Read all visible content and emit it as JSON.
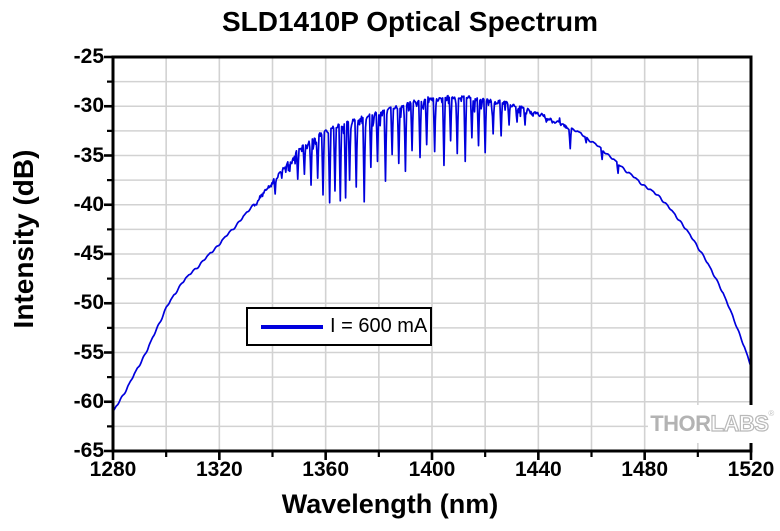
{
  "title": "SLD1410P Optical Spectrum",
  "legend": {
    "label": "I = 600 mA"
  },
  "watermark": {
    "thor": "THOR",
    "labs": "LABS",
    "registered": "®"
  },
  "colors": {
    "curve": "#0000dd",
    "grid": "#d2d2d2",
    "axis": "#000000",
    "background": "#ffffff",
    "watermark_gray": "#b3b3b3"
  },
  "chart_data": {
    "type": "line",
    "title": "SLD1410P Optical Spectrum",
    "xlabel": "Wavelength (nm)",
    "ylabel": "Intensity (dB)",
    "xlim": [
      1280,
      1520
    ],
    "ylim": [
      -65,
      -25
    ],
    "x_major_ticks": [
      1280,
      1320,
      1360,
      1400,
      1440,
      1480,
      1520
    ],
    "x_minor_ticks": [
      1300,
      1340,
      1380,
      1420,
      1460,
      1500
    ],
    "y_major_ticks": [
      -25,
      -30,
      -35,
      -40,
      -45,
      -50,
      -55,
      -60,
      -65
    ],
    "y_minor_ticks": [
      -27.5,
      -32.5,
      -37.5,
      -42.5,
      -47.5,
      -52.5,
      -57.5,
      -62.5
    ],
    "grid": true,
    "grid_spacing": {
      "x_nm": 20,
      "y_db": 2.5
    },
    "legend_position": "center-left",
    "series": [
      {
        "name": "I = 600 mA",
        "color": "#0000dd",
        "peak_wavelength_nm": 1405,
        "peak_intensity_db": -28.9,
        "envelope_points": [
          [
            1280,
            -61.0
          ],
          [
            1286,
            -58.2
          ],
          [
            1293,
            -54.6
          ],
          [
            1300,
            -50.4
          ],
          [
            1306,
            -47.8
          ],
          [
            1313,
            -45.9
          ],
          [
            1320,
            -43.9
          ],
          [
            1328,
            -41.5
          ],
          [
            1335,
            -39.2
          ],
          [
            1343,
            -36.5
          ],
          [
            1350,
            -34.2
          ],
          [
            1356,
            -32.9
          ],
          [
            1362,
            -32.1
          ],
          [
            1370,
            -31.3
          ],
          [
            1380,
            -30.5
          ],
          [
            1390,
            -29.6
          ],
          [
            1397,
            -29.1
          ],
          [
            1405,
            -28.9
          ],
          [
            1412,
            -28.9
          ],
          [
            1418,
            -29.1
          ],
          [
            1426,
            -29.4
          ],
          [
            1433,
            -29.9
          ],
          [
            1441,
            -30.7
          ],
          [
            1448,
            -31.6
          ],
          [
            1456,
            -32.7
          ],
          [
            1464,
            -34.3
          ],
          [
            1471,
            -36.0
          ],
          [
            1478,
            -37.6
          ],
          [
            1486,
            -39.2
          ],
          [
            1494,
            -41.8
          ],
          [
            1501,
            -44.6
          ],
          [
            1508,
            -48.0
          ],
          [
            1514,
            -51.8
          ],
          [
            1520,
            -56.3
          ]
        ],
        "absorption_dips": [
          [
            1341,
            -38.9
          ],
          [
            1343.5,
            -37.3
          ],
          [
            1346.5,
            -36.6
          ],
          [
            1349.5,
            -37.4
          ],
          [
            1352,
            -36.9
          ],
          [
            1354.5,
            -38.0
          ],
          [
            1357,
            -37.3
          ],
          [
            1359,
            -39.0
          ],
          [
            1361.5,
            -39.8
          ],
          [
            1363.5,
            -38.6
          ],
          [
            1365.5,
            -39.6
          ],
          [
            1367.5,
            -39.3
          ],
          [
            1369,
            -37.5
          ],
          [
            1371.5,
            -38.2
          ],
          [
            1374.5,
            -39.7
          ],
          [
            1377,
            -36.2
          ],
          [
            1379.5,
            -35.6
          ],
          [
            1382.5,
            -37.6
          ],
          [
            1385,
            -34.9
          ],
          [
            1387.5,
            -35.8
          ],
          [
            1390,
            -36.6
          ],
          [
            1392.5,
            -34.5
          ],
          [
            1395.5,
            -35.2
          ],
          [
            1398,
            -33.9
          ],
          [
            1401,
            -34.6
          ],
          [
            1404.5,
            -36.0
          ],
          [
            1407,
            -33.5
          ],
          [
            1409.5,
            -34.8
          ],
          [
            1412.5,
            -35.6
          ],
          [
            1415,
            -33.2
          ],
          [
            1417.5,
            -34.0
          ],
          [
            1420,
            -34.7
          ],
          [
            1423,
            -32.8
          ],
          [
            1426,
            -33.0
          ],
          [
            1429,
            -31.9
          ],
          [
            1432,
            -31.6
          ],
          [
            1435,
            -31.9
          ],
          [
            1438,
            -31.0
          ],
          [
            1443,
            -31.6
          ],
          [
            1448,
            -31.2
          ],
          [
            1452,
            -34.3
          ],
          [
            1458,
            -33.7
          ],
          [
            1464,
            -35.4
          ],
          [
            1470,
            -36.8
          ]
        ]
      }
    ]
  }
}
